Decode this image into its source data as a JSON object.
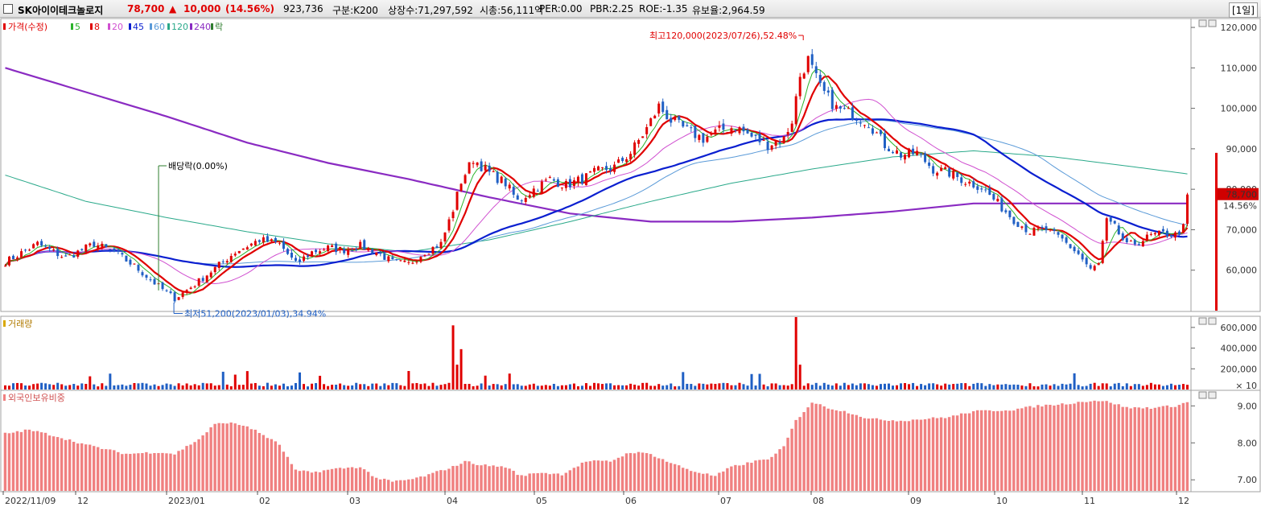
{
  "header": {
    "name": "SK아이이테크놀로지",
    "price": "78,700",
    "arrow": "▲",
    "change": "10,000",
    "pct": "(14.56%)",
    "volume": "923,736",
    "category": "구분:K200",
    "shares": "상장수:71,297,592",
    "mcap": "시총:56,111억",
    "per": "PER:0.00",
    "pbr": "PBR:2.25",
    "roe": "ROE:-1.35",
    "retention": "유보율:2,964.59",
    "period": "[1일]"
  },
  "colors": {
    "up": "#e00000",
    "down": "#1f5fc4",
    "ma5": "#2bb32b",
    "ma8": "#e00000",
    "ma20": "#d050d0",
    "ma45": "#0a1fd0",
    "ma60": "#5a9ad8",
    "ma120": "#2aa98a",
    "ma240": "#8a2bc2",
    "foreign": "#f08080",
    "dividend": "#2e7d2e"
  },
  "chart_data": [
    {
      "type": "candlestick",
      "legend": {
        "price": "가격(수정)",
        "ma": [
          "5",
          "8",
          "20",
          "45",
          "60",
          "120",
          "240"
        ],
        "extra": "락"
      },
      "y_ticks": [
        "120,000",
        "110,000",
        "100,000",
        "90,000",
        "80,000",
        "70,000",
        "60,000"
      ],
      "ylim": [
        50000,
        122000
      ],
      "last_price_label": "78,700",
      "last_pct_label": "14.56%",
      "annotations": {
        "high": "최고120,000(2023/07/26),52.48%",
        "low": "최저51,200(2023/01/03),34.94%",
        "dividend": "배당락(0.00%)"
      },
      "x_labels": [
        "2022/11/09",
        "12",
        "2023/01",
        "02",
        "03",
        "04",
        "05",
        "06",
        "07",
        "08",
        "09",
        "10",
        "11",
        "12"
      ],
      "price_anchors": [
        [
          0,
          62000
        ],
        [
          8,
          66500
        ],
        [
          15,
          63000
        ],
        [
          22,
          66500
        ],
        [
          27,
          64500
        ],
        [
          32,
          61000
        ],
        [
          38,
          56000
        ],
        [
          42,
          53000
        ],
        [
          47,
          56500
        ],
        [
          52,
          60500
        ],
        [
          57,
          64500
        ],
        [
          63,
          67500
        ],
        [
          68,
          66500
        ],
        [
          72,
          61500
        ],
        [
          76,
          64500
        ],
        [
          80,
          65500
        ],
        [
          84,
          65000
        ],
        [
          88,
          66000
        ],
        [
          92,
          64500
        ],
        [
          96,
          62000
        ],
        [
          100,
          61500
        ],
        [
          104,
          64500
        ],
        [
          108,
          66500
        ],
        [
          111,
          75000
        ],
        [
          113,
          82000
        ],
        [
          116,
          87500
        ],
        [
          120,
          84000
        ],
        [
          124,
          81500
        ],
        [
          127,
          77000
        ],
        [
          131,
          80000
        ],
        [
          135,
          82500
        ],
        [
          139,
          81000
        ],
        [
          143,
          82500
        ],
        [
          147,
          84500
        ],
        [
          151,
          85500
        ],
        [
          155,
          89000
        ],
        [
          159,
          95000
        ],
        [
          162,
          100500
        ],
        [
          165,
          97000
        ],
        [
          169,
          94500
        ],
        [
          173,
          92500
        ],
        [
          177,
          94500
        ],
        [
          181,
          95500
        ],
        [
          185,
          93000
        ],
        [
          189,
          91000
        ],
        [
          193,
          92500
        ],
        [
          195,
          97000
        ],
        [
          197,
          108000
        ],
        [
          199,
          112000
        ],
        [
          202,
          105000
        ],
        [
          206,
          100000
        ],
        [
          210,
          98500
        ],
        [
          214,
          96500
        ],
        [
          218,
          91000
        ],
        [
          222,
          88500
        ],
        [
          226,
          89000
        ],
        [
          230,
          85000
        ],
        [
          234,
          84000
        ],
        [
          238,
          82000
        ],
        [
          242,
          80500
        ],
        [
          246,
          76500
        ],
        [
          250,
          72500
        ],
        [
          254,
          69500
        ],
        [
          258,
          70000
        ],
        [
          262,
          67500
        ],
        [
          266,
          64000
        ],
        [
          269,
          60000
        ],
        [
          271,
          61500
        ],
        [
          273,
          72000
        ],
        [
          275,
          70500
        ],
        [
          278,
          66000
        ],
        [
          281,
          67000
        ],
        [
          284,
          68500
        ],
        [
          287,
          69000
        ],
        [
          290,
          68700
        ],
        [
          292,
          70500
        ],
        [
          293,
          78700
        ]
      ],
      "ma120_anchors": [
        [
          0,
          83500
        ],
        [
          20,
          77000
        ],
        [
          40,
          73000
        ],
        [
          60,
          69500
        ],
        [
          80,
          66500
        ],
        [
          100,
          64500
        ],
        [
          120,
          67500
        ],
        [
          140,
          72000
        ],
        [
          160,
          77000
        ],
        [
          180,
          81500
        ],
        [
          200,
          85000
        ],
        [
          220,
          88000
        ],
        [
          240,
          89500
        ],
        [
          260,
          88000
        ],
        [
          280,
          85500
        ],
        [
          293,
          83800
        ]
      ],
      "ma240_anchors": [
        [
          0,
          110000
        ],
        [
          20,
          104000
        ],
        [
          40,
          98000
        ],
        [
          60,
          91500
        ],
        [
          80,
          86500
        ],
        [
          100,
          82500
        ],
        [
          120,
          78000
        ],
        [
          140,
          74000
        ],
        [
          160,
          72000
        ],
        [
          180,
          72000
        ],
        [
          200,
          73000
        ],
        [
          220,
          74500
        ],
        [
          240,
          76500
        ],
        [
          260,
          76500
        ],
        [
          280,
          76500
        ],
        [
          293,
          76500
        ]
      ],
      "volume": {
        "label": "거래량",
        "y_ticks": [
          "600,000",
          "400,000",
          "200,000"
        ],
        "unit": "× 10",
        "ymax": 700000
      },
      "foreign": {
        "label": "외국인보유비중",
        "y_ticks": [
          "9.00",
          "8.00",
          "7.00"
        ],
        "ylim": [
          6.7,
          9.4
        ],
        "anchors": [
          [
            0,
            8.25
          ],
          [
            6,
            8.35
          ],
          [
            12,
            8.2
          ],
          [
            20,
            7.95
          ],
          [
            30,
            7.7
          ],
          [
            38,
            7.75
          ],
          [
            42,
            7.7
          ],
          [
            48,
            8.1
          ],
          [
            52,
            8.5
          ],
          [
            55,
            8.55
          ],
          [
            60,
            8.45
          ],
          [
            65,
            8.15
          ],
          [
            68,
            7.95
          ],
          [
            72,
            7.25
          ],
          [
            76,
            7.2
          ],
          [
            82,
            7.3
          ],
          [
            88,
            7.35
          ],
          [
            92,
            7.05
          ],
          [
            96,
            6.95
          ],
          [
            100,
            7.0
          ],
          [
            104,
            7.1
          ],
          [
            108,
            7.25
          ],
          [
            111,
            7.35
          ],
          [
            114,
            7.5
          ],
          [
            118,
            7.4
          ],
          [
            124,
            7.35
          ],
          [
            128,
            7.1
          ],
          [
            132,
            7.2
          ],
          [
            138,
            7.15
          ],
          [
            144,
            7.5
          ],
          [
            150,
            7.5
          ],
          [
            155,
            7.75
          ],
          [
            160,
            7.7
          ],
          [
            164,
            7.5
          ],
          [
            170,
            7.25
          ],
          [
            176,
            7.1
          ],
          [
            180,
            7.35
          ],
          [
            186,
            7.5
          ],
          [
            190,
            7.6
          ],
          [
            193,
            7.9
          ],
          [
            196,
            8.6
          ],
          [
            200,
            9.1
          ],
          [
            204,
            8.95
          ],
          [
            210,
            8.8
          ],
          [
            214,
            8.65
          ],
          [
            222,
            8.6
          ],
          [
            228,
            8.65
          ],
          [
            234,
            8.7
          ],
          [
            240,
            8.85
          ],
          [
            250,
            8.9
          ],
          [
            256,
            9.0
          ],
          [
            262,
            9.05
          ],
          [
            270,
            9.15
          ],
          [
            274,
            9.1
          ],
          [
            278,
            8.95
          ],
          [
            284,
            8.95
          ],
          [
            290,
            9.0
          ],
          [
            293,
            9.1
          ]
        ]
      }
    }
  ]
}
